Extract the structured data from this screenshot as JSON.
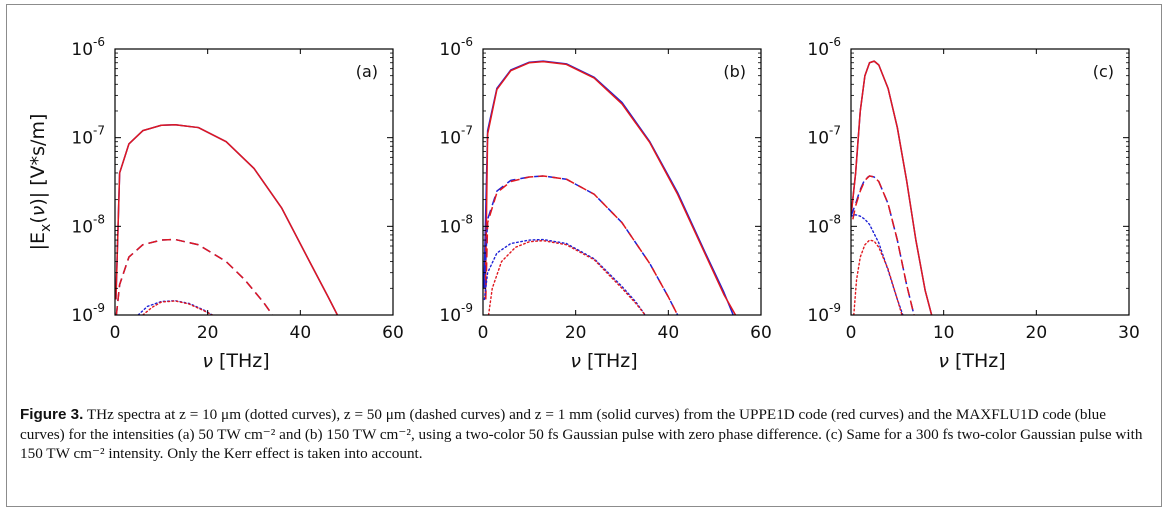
{
  "caption": {
    "label": "Figure 3.",
    "text": "THz spectra at z = 10 μm (dotted curves), z = 50 μm (dashed curves) and z = 1 mm (solid curves) from the UPPE1D code (red curves) and the MAXFLU1D code (blue curves) for the intensities (a) 50 TW cm⁻² and (b) 150 TW cm⁻², using a two-color 50 fs Gaussian pulse with zero phase difference. (c) Same for a 300 fs two-color Gaussian pulse with 150 TW cm⁻² intensity. Only the Kerr effect is taken into account."
  },
  "ylabel": "|E_x(ν)| [V*s/m]",
  "colors": {
    "red": "#e0181f",
    "blue": "#1f22d6",
    "axis": "#000000"
  },
  "chart_data": [
    {
      "type": "line",
      "panel": "(a)",
      "xlabel": "ν [THz]",
      "ylabel": "|E_x(ν)| [V*s/m]",
      "xlim": [
        0,
        60
      ],
      "ylim": [
        1e-09,
        1e-06
      ],
      "yscale": "log",
      "xticks": [
        "0",
        "20",
        "40",
        "60"
      ],
      "yticks": [
        {
          "base": "10",
          "exp": "-9"
        },
        {
          "base": "10",
          "exp": "-8"
        },
        {
          "base": "10",
          "exp": "-7"
        },
        {
          "base": "10",
          "exp": "-6"
        }
      ],
      "series": [
        {
          "color": "blue",
          "style": "solid",
          "x": [
            0.2,
            1,
            3,
            6,
            10,
            13,
            18,
            24,
            30,
            36,
            42,
            46,
            48
          ],
          "y": [
            1.5e-09,
            4e-08,
            8.5e-08,
            1.2e-07,
            1.38e-07,
            1.4e-07,
            1.3e-07,
            9e-08,
            4.5e-08,
            1.6e-08,
            4e-09,
            1.6e-09,
            1e-09
          ]
        },
        {
          "color": "red",
          "style": "solid",
          "x": [
            0.2,
            1,
            3,
            6,
            10,
            13,
            18,
            24,
            30,
            36,
            42,
            46,
            48
          ],
          "y": [
            1.5e-09,
            4e-08,
            8.5e-08,
            1.2e-07,
            1.38e-07,
            1.4e-07,
            1.3e-07,
            9e-08,
            4.5e-08,
            1.6e-08,
            4e-09,
            1.6e-09,
            1e-09
          ]
        },
        {
          "color": "blue",
          "style": "dashed",
          "x": [
            0.3,
            1,
            3,
            6,
            10,
            13,
            18,
            24,
            28,
            32,
            34
          ],
          "y": [
            1e-09,
            2.2e-09,
            4.5e-09,
            6.2e-09,
            7e-09,
            7.1e-09,
            6.2e-09,
            4e-09,
            2.5e-09,
            1.4e-09,
            1e-09
          ]
        },
        {
          "color": "red",
          "style": "dashed",
          "x": [
            0.3,
            1,
            3,
            6,
            10,
            13,
            18,
            24,
            28,
            32,
            34
          ],
          "y": [
            1e-09,
            2.2e-09,
            4.5e-09,
            6.2e-09,
            7e-09,
            7.1e-09,
            6.2e-09,
            4e-09,
            2.5e-09,
            1.4e-09,
            1e-09
          ]
        },
        {
          "color": "blue",
          "style": "dotted",
          "x": [
            5,
            7,
            10,
            13,
            16,
            19,
            21
          ],
          "y": [
            1e-09,
            1.25e-09,
            1.42e-09,
            1.45e-09,
            1.35e-09,
            1.15e-09,
            1e-09
          ]
        },
        {
          "color": "red",
          "style": "dotted",
          "x": [
            6,
            8,
            10,
            13,
            16,
            19,
            21
          ],
          "y": [
            1e-09,
            1.22e-09,
            1.4e-09,
            1.44e-09,
            1.33e-09,
            1.13e-09,
            1e-09
          ]
        }
      ]
    },
    {
      "type": "line",
      "panel": "(b)",
      "xlabel": "ν [THz]",
      "ylabel": "",
      "xlim": [
        0,
        60
      ],
      "ylim": [
        1e-09,
        1e-06
      ],
      "yscale": "log",
      "xticks": [
        "0",
        "20",
        "40",
        "60"
      ],
      "yticks": [
        {
          "base": "10",
          "exp": "-9"
        },
        {
          "base": "10",
          "exp": "-8"
        },
        {
          "base": "10",
          "exp": "-7"
        },
        {
          "base": "10",
          "exp": "-6"
        }
      ],
      "series": [
        {
          "color": "blue",
          "style": "solid",
          "x": [
            0.2,
            1,
            3,
            6,
            10,
            13,
            18,
            24,
            30,
            36,
            42,
            48,
            52,
            54
          ],
          "y": [
            2e-09,
            1.2e-07,
            3.6e-07,
            5.8e-07,
            7.1e-07,
            7.3e-07,
            6.8e-07,
            4.8e-07,
            2.5e-07,
            9e-08,
            2.4e-08,
            5e-09,
            1.8e-09,
            1e-09
          ]
        },
        {
          "color": "red",
          "style": "solid",
          "x": [
            0.5,
            1,
            3,
            6,
            10,
            13,
            18,
            24,
            30,
            36,
            42,
            48,
            52,
            54.5
          ],
          "y": [
            1.5e-09,
            1.1e-07,
            3.5e-07,
            5.7e-07,
            7e-07,
            7.2e-07,
            6.7e-07,
            4.7e-07,
            2.4e-07,
            8.8e-08,
            2.3e-08,
            4.8e-09,
            1.7e-09,
            1e-09
          ]
        },
        {
          "color": "blue",
          "style": "dashed",
          "x": [
            0.3,
            1,
            3,
            6,
            10,
            13,
            18,
            24,
            30,
            36,
            40,
            42
          ],
          "y": [
            2e-09,
            1.2e-08,
            2.5e-08,
            3.3e-08,
            3.6e-08,
            3.7e-08,
            3.4e-08,
            2.3e-08,
            1.1e-08,
            3.8e-09,
            1.6e-09,
            1e-09
          ]
        },
        {
          "color": "red",
          "style": "dashed",
          "x": [
            0.6,
            1,
            3,
            6,
            10,
            13,
            18,
            24,
            30,
            36,
            40,
            42
          ],
          "y": [
            1.5e-09,
            1.1e-08,
            2.4e-08,
            3.2e-08,
            3.6e-08,
            3.7e-08,
            3.4e-08,
            2.3e-08,
            1.1e-08,
            3.8e-09,
            1.6e-09,
            1e-09
          ]
        },
        {
          "color": "blue",
          "style": "dotted",
          "x": [
            0.3,
            1,
            3,
            6,
            10,
            13,
            18,
            24,
            30,
            33,
            35
          ],
          "y": [
            1.5e-09,
            3e-09,
            5e-09,
            6.4e-09,
            7e-09,
            7.1e-09,
            6.4e-09,
            4.3e-09,
            2.1e-09,
            1.4e-09,
            1e-09
          ]
        },
        {
          "color": "red",
          "style": "dotted",
          "x": [
            1.2,
            2,
            4,
            7,
            10,
            13,
            18,
            24,
            30,
            33,
            35
          ],
          "y": [
            1e-09,
            2e-09,
            4e-09,
            5.8e-09,
            6.7e-09,
            6.9e-09,
            6.2e-09,
            4.2e-09,
            2e-09,
            1.35e-09,
            1e-09
          ]
        }
      ]
    },
    {
      "type": "line",
      "panel": "(c)",
      "xlabel": "ν [THz]",
      "ylabel": "",
      "xlim": [
        0,
        30
      ],
      "ylim": [
        1e-09,
        1e-06
      ],
      "yscale": "log",
      "xticks": [
        "0",
        "10",
        "20",
        "30"
      ],
      "yticks": [
        {
          "base": "10",
          "exp": "-9"
        },
        {
          "base": "10",
          "exp": "-8"
        },
        {
          "base": "10",
          "exp": "-7"
        },
        {
          "base": "10",
          "exp": "-6"
        }
      ],
      "series": [
        {
          "color": "blue",
          "style": "solid",
          "x": [
            0,
            0.5,
            1,
            1.5,
            2,
            2.5,
            3,
            4,
            5,
            6,
            7,
            8,
            8.7
          ],
          "y": [
            1.3e-08,
            4e-08,
            2e-07,
            5e-07,
            7e-07,
            7.3e-07,
            6.6e-07,
            3.6e-07,
            1.3e-07,
            3.3e-08,
            7e-09,
            1.9e-09,
            1e-09
          ]
        },
        {
          "color": "red",
          "style": "solid",
          "x": [
            0,
            0.5,
            1,
            1.5,
            2,
            2.5,
            3,
            4,
            5,
            6,
            7,
            8,
            8.7
          ],
          "y": [
            1.3e-08,
            4e-08,
            2e-07,
            5e-07,
            7e-07,
            7.3e-07,
            6.6e-07,
            3.6e-07,
            1.3e-07,
            3.3e-08,
            7e-09,
            1.9e-09,
            1e-09
          ]
        },
        {
          "color": "blue",
          "style": "dashed",
          "x": [
            0,
            0.5,
            1,
            1.5,
            2,
            2.5,
            3,
            4,
            5,
            6,
            6.8
          ],
          "y": [
            1.3e-08,
            1.8e-08,
            2.6e-08,
            3.4e-08,
            3.7e-08,
            3.6e-08,
            3.2e-08,
            1.8e-08,
            7e-09,
            2.2e-09,
            1e-09
          ]
        },
        {
          "color": "red",
          "style": "dashed",
          "x": [
            0.2,
            0.5,
            1,
            1.5,
            2,
            2.5,
            3,
            4,
            5,
            6,
            6.8
          ],
          "y": [
            1.2e-08,
            1.7e-08,
            2.5e-08,
            3.3e-08,
            3.7e-08,
            3.6e-08,
            3.2e-08,
            1.8e-08,
            7e-09,
            2.2e-09,
            1e-09
          ]
        },
        {
          "color": "blue",
          "style": "dotted",
          "x": [
            0,
            0.5,
            1,
            1.5,
            2,
            3,
            4,
            5,
            5.6
          ],
          "y": [
            1.3e-08,
            1.35e-08,
            1.3e-08,
            1.2e-08,
            1.05e-08,
            6.5e-09,
            3.2e-09,
            1.5e-09,
            1e-09
          ]
        },
        {
          "color": "red",
          "style": "dotted",
          "x": [
            0.3,
            0.6,
            1,
            1.5,
            2,
            2.5,
            3,
            4,
            5,
            5.5
          ],
          "y": [
            1e-09,
            2.5e-09,
            4.5e-09,
            6.2e-09,
            7e-09,
            6.8e-09,
            5.8e-09,
            3.3e-09,
            1.5e-09,
            1e-09
          ]
        }
      ]
    }
  ]
}
